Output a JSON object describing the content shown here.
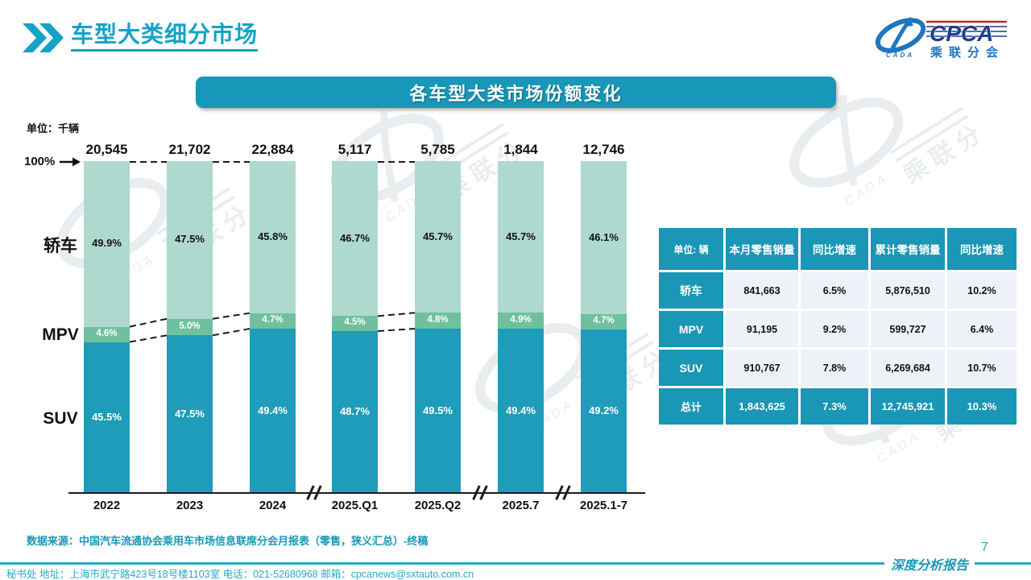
{
  "page": {
    "title": "车型大类细分市场",
    "page_number": "7",
    "report_type_label": "深度分析报告",
    "footer_text": "秘书处  地址：上海市武宁路423号18号楼1103室 电话：021-52680968  邮箱：cpcanews@sxtauto.com.cn",
    "source_note": "数据来源：中国汽车流通协会乘用车市场信息联席分会月报表（零售，狭义汇总）-终稿"
  },
  "logo": {
    "name": "cpca-logo",
    "acronym": "CPCA",
    "chinese": "乘联分会",
    "sub": "CADA"
  },
  "banner": {
    "title": "各车型大类市场份额变化"
  },
  "chart_data": {
    "type": "bar",
    "stacked": true,
    "title": "各车型大类市场份额变化",
    "unit_label": "单位：千辆",
    "axis_top_label": "100%",
    "categories": [
      "2022",
      "2023",
      "2024",
      "2025.Q1",
      "2025.Q2",
      "2025.7",
      "2025.1-7"
    ],
    "totals_thousand_units": [
      "20,545",
      "21,702",
      "22,884",
      "5,117",
      "5,785",
      "1,844",
      "12,746"
    ],
    "series": [
      {
        "name": "轿车",
        "values": [
          49.9,
          47.5,
          45.8,
          46.7,
          45.7,
          45.7,
          46.1
        ]
      },
      {
        "name": "MPV",
        "values": [
          4.6,
          5.0,
          4.7,
          4.5,
          4.8,
          4.9,
          4.7
        ]
      },
      {
        "name": "SUV",
        "values": [
          45.5,
          47.5,
          49.4,
          48.7,
          49.5,
          49.4,
          49.2
        ]
      }
    ],
    "ylim": [
      0,
      100
    ],
    "grid": false,
    "legend_position": "left-category-labels",
    "axis_breaks_after_index": [
      2,
      4,
      5
    ],
    "dashed_connector_pairs": [
      [
        0,
        1
      ],
      [
        1,
        2
      ],
      [
        3,
        4
      ]
    ]
  },
  "table": {
    "unit_header": "单位: 辆",
    "columns": [
      "本月零售销量",
      "同比增速",
      "累计零售销量",
      "同比增速"
    ],
    "rows": [
      {
        "label": "轿车",
        "values": [
          "841,663",
          "6.5%",
          "5,876,510",
          "10.2%"
        ]
      },
      {
        "label": "MPV",
        "values": [
          "91,195",
          "9.2%",
          "599,727",
          "6.4%"
        ]
      },
      {
        "label": "SUV",
        "values": [
          "910,767",
          "7.8%",
          "6,269,684",
          "10.7%"
        ]
      }
    ],
    "total_row": {
      "label": "总计",
      "values": [
        "1,843,625",
        "7.3%",
        "12,745,921",
        "10.3%"
      ]
    }
  },
  "colors": {
    "title_teal": "#13a3c5",
    "banner_teal": "#1898b8",
    "sedan_segment": "#aed9cf",
    "mpv_segment": "#6fc0a0",
    "suv_segment": "#1e9cba",
    "sedan_label_text": "#111111",
    "mpv_label_text": "#ffffff",
    "suv_label_text": "#ffffff",
    "table_header_teal": "#1a96b6",
    "table_cell_bg": "#eef2f8",
    "footer_teal": "#29a8c8",
    "source_teal": "#1898b8"
  }
}
